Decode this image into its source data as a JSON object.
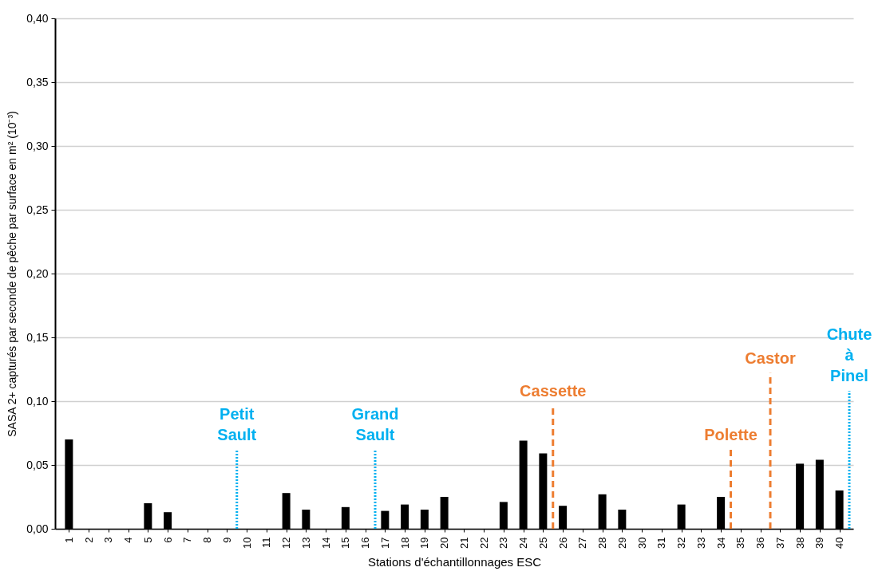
{
  "chart_data": {
    "type": "bar",
    "xlabel": "Stations d'échantillonnages  ESC",
    "ylabel": "SASA 2+ capturés par seconde de pêche par surface en m² (10⁻³)",
    "x": [
      1,
      2,
      3,
      4,
      5,
      6,
      7,
      8,
      9,
      10,
      11,
      12,
      13,
      14,
      15,
      16,
      17,
      18,
      19,
      20,
      21,
      22,
      23,
      24,
      25,
      26,
      27,
      28,
      29,
      30,
      31,
      32,
      33,
      34,
      35,
      36,
      37,
      38,
      39,
      40
    ],
    "values": [
      0.07,
      0,
      0,
      0,
      0.02,
      0.013,
      0,
      0,
      0,
      0,
      0,
      0.028,
      0.015,
      0,
      0.017,
      0,
      0.014,
      0.019,
      0.015,
      0.025,
      0,
      0,
      0.021,
      0.069,
      0.059,
      0.018,
      0,
      0.027,
      0.015,
      0,
      0,
      0.019,
      0,
      0.025,
      0,
      0,
      0,
      0.051,
      0.054,
      0.03
    ],
    "color": "#000000",
    "xlim": [
      0.5,
      40.5
    ],
    "xticks": [
      1,
      2,
      3,
      4,
      5,
      6,
      7,
      8,
      9,
      10,
      11,
      12,
      13,
      14,
      15,
      16,
      17,
      18,
      19,
      20,
      21,
      22,
      23,
      24,
      25,
      26,
      27,
      28,
      29,
      30,
      31,
      32,
      33,
      34,
      35,
      36,
      37,
      38,
      39,
      40
    ],
    "ylim": [
      0,
      0.4
    ],
    "yticks": [
      {
        "value": 0,
        "label": "0,00"
      },
      {
        "value": 0.05,
        "label": "0,05"
      },
      {
        "value": 0.1,
        "label": "0,10"
      },
      {
        "value": 0.15,
        "label": "0,15"
      },
      {
        "value": 0.2,
        "label": "0,20"
      },
      {
        "value": 0.25,
        "label": "0,25"
      },
      {
        "value": 0.3,
        "label": "0,30"
      },
      {
        "value": 0.35,
        "label": "0,35"
      },
      {
        "value": 0.4,
        "label": "0,40"
      }
    ],
    "grid": "y",
    "ref_lines": [
      {
        "axis": "x",
        "value": 9.5,
        "color": "#00b0f0",
        "line_style": "dotted"
      },
      {
        "axis": "x",
        "value": 16.5,
        "color": "#00b0f0",
        "line_style": "dotted"
      },
      {
        "axis": "x",
        "value": 25.5,
        "color": "#ed7d31",
        "line_style": "dashed"
      },
      {
        "axis": "x",
        "value": 34.5,
        "color": "#ed7d31",
        "line_style": "dashed"
      },
      {
        "axis": "x",
        "value": 36.5,
        "color": "#ed7d31",
        "line_style": "dashed"
      },
      {
        "axis": "x",
        "value": 40.5,
        "color": "#00b0f0",
        "line_style": "dotted"
      }
    ],
    "annotations": [
      {
        "text": "Petit\nSault",
        "x": 9.5,
        "y": 0.062
      },
      {
        "text": "Grand\nSault",
        "x": 16.5,
        "y": 0.062
      },
      {
        "text": "Cassette",
        "x": 25.5,
        "y": 0.096
      },
      {
        "text": "Polette",
        "x": 34.5,
        "y": 0.062
      },
      {
        "text": "Castor",
        "x": 36.5,
        "y": 0.122
      },
      {
        "text": "Chute\nà\nPinel",
        "x": 40.5,
        "y": 0.108
      }
    ]
  }
}
